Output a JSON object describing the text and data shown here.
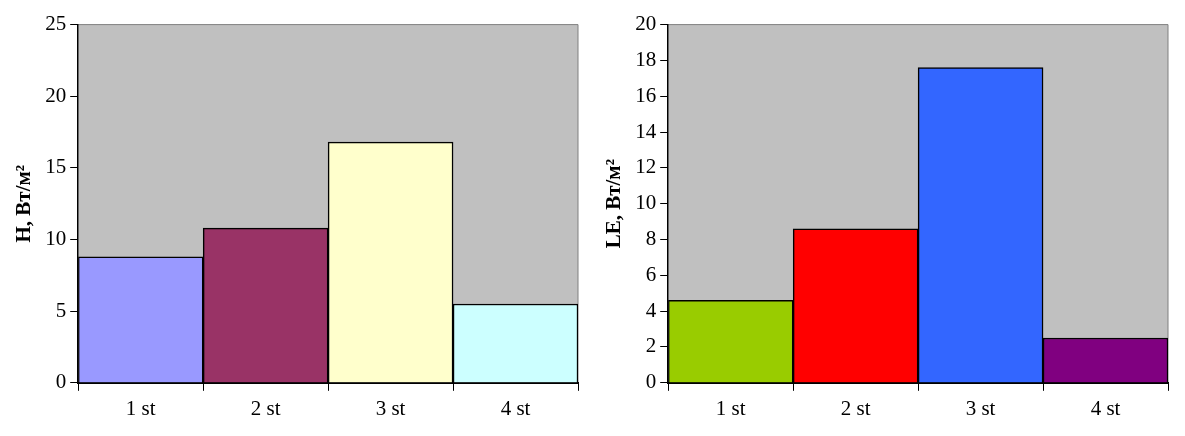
{
  "chart_data": [
    {
      "type": "bar",
      "ylabel": "H, Вт/м²",
      "categories": [
        "1 st",
        "2 st",
        "3 st",
        "4 st"
      ],
      "values": [
        8.8,
        10.8,
        16.8,
        5.5
      ],
      "colors": [
        "#9999ff",
        "#993366",
        "#ffffcc",
        "#ccffff"
      ],
      "ylim": [
        0,
        25
      ],
      "yticks": [
        0,
        5,
        10,
        15,
        20,
        25
      ],
      "grid": false,
      "legend": false
    },
    {
      "type": "bar",
      "ylabel": "LE, Вт/м²",
      "categories": [
        "1 st",
        "2 st",
        "3 st",
        "4 st"
      ],
      "values": [
        4.6,
        8.6,
        17.6,
        2.5
      ],
      "colors": [
        "#99cc00",
        "#ff0000",
        "#3366ff",
        "#800080"
      ],
      "ylim": [
        0,
        20
      ],
      "yticks": [
        0,
        2,
        4,
        6,
        8,
        10,
        12,
        14,
        16,
        18,
        20
      ],
      "grid": false,
      "legend": false
    }
  ]
}
